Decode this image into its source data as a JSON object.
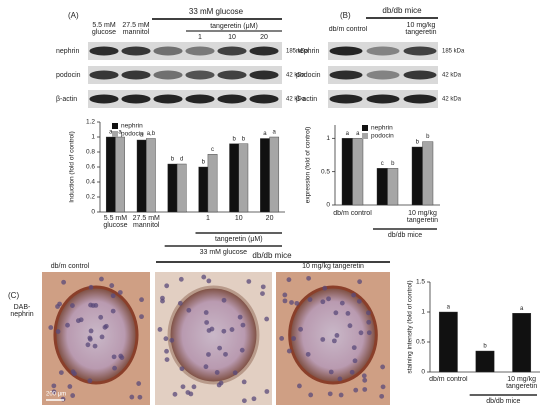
{
  "panel_a": {
    "label": "(A)",
    "treatment": "33 mM glucose",
    "lanes": [
      "5.5 mM glucose",
      "27.5 mM mannitol"
    ],
    "tangeretin": "tangeretin (μM)",
    "doses": [
      "1",
      "10",
      "20"
    ],
    "rows": [
      "nephrin",
      "podocin",
      "β-actin"
    ],
    "sizes": [
      "185 kDa",
      "42 kDa",
      "42 kDa"
    ]
  },
  "panel_b": {
    "label": "(B)",
    "group": "db/db mice",
    "lanes": [
      "db/m control",
      "10 mg/kg tangeretin"
    ],
    "rows": [
      "nephrin",
      "podocin",
      "β-actin"
    ],
    "sizes": [
      "185 kDa",
      "42 kDa",
      "42 kDa"
    ]
  },
  "panel_c": {
    "label": "(C)",
    "stain": "DAB-nephrin",
    "group": "db/db mice",
    "images": [
      "db/m control",
      "10 mg/kg tangeretin"
    ],
    "scale": "200 μm"
  },
  "chart_data": [
    {
      "type": "bar",
      "ylabel": "Induction (fold of control)",
      "categories": [
        "5.5 mM glucose",
        "27.5 mM mannitol",
        null,
        "1",
        "10",
        "20"
      ],
      "series": [
        {
          "name": "nephrin",
          "color": "#111111",
          "values": [
            1.0,
            0.96,
            0.64,
            0.6,
            0.91,
            0.98
          ],
          "letters": [
            "a",
            "a",
            "b",
            "b",
            "b",
            "a"
          ]
        },
        {
          "name": "podocin",
          "color": "#a6a6a6",
          "values": [
            1.0,
            0.98,
            0.64,
            0.77,
            0.91,
            1.0
          ],
          "letters": [
            "a",
            "a,b",
            "d",
            "c",
            "b",
            "a"
          ]
        }
      ],
      "ylim": [
        0,
        1.2
      ],
      "yticks": [
        0,
        0.2,
        0.4,
        0.6,
        0.8,
        1,
        1.2
      ],
      "subgroup_label": "tangeretin (μM)",
      "group_label": "33 mM glucose"
    },
    {
      "type": "bar",
      "ylabel": "expression (fold of control)",
      "categories": [
        "db/m control",
        null,
        "10 mg/kg tangeretin"
      ],
      "series": [
        {
          "name": "nephrin",
          "color": "#111111",
          "values": [
            1.0,
            0.55,
            0.87
          ],
          "letters": [
            "a",
            "c",
            "b"
          ]
        },
        {
          "name": "podocin",
          "color": "#a6a6a6",
          "values": [
            1.0,
            0.55,
            0.95
          ],
          "letters": [
            "a",
            "b",
            "b"
          ]
        }
      ],
      "ylim": [
        0,
        1.2
      ],
      "yticks": [
        0,
        0.5,
        1
      ],
      "group_label": "db/db mice"
    },
    {
      "type": "bar",
      "ylabel": "staining intensity (fold of control)",
      "categories": [
        "db/m control",
        null,
        "10 mg/kg tangeretin"
      ],
      "values": [
        1.0,
        0.35,
        0.98
      ],
      "letters": [
        "a",
        "b",
        "a"
      ],
      "color": "#111111",
      "ylim": [
        0,
        1.5
      ],
      "yticks": [
        0,
        0.5,
        1,
        1.5
      ],
      "group_label": "db/db mice"
    }
  ]
}
